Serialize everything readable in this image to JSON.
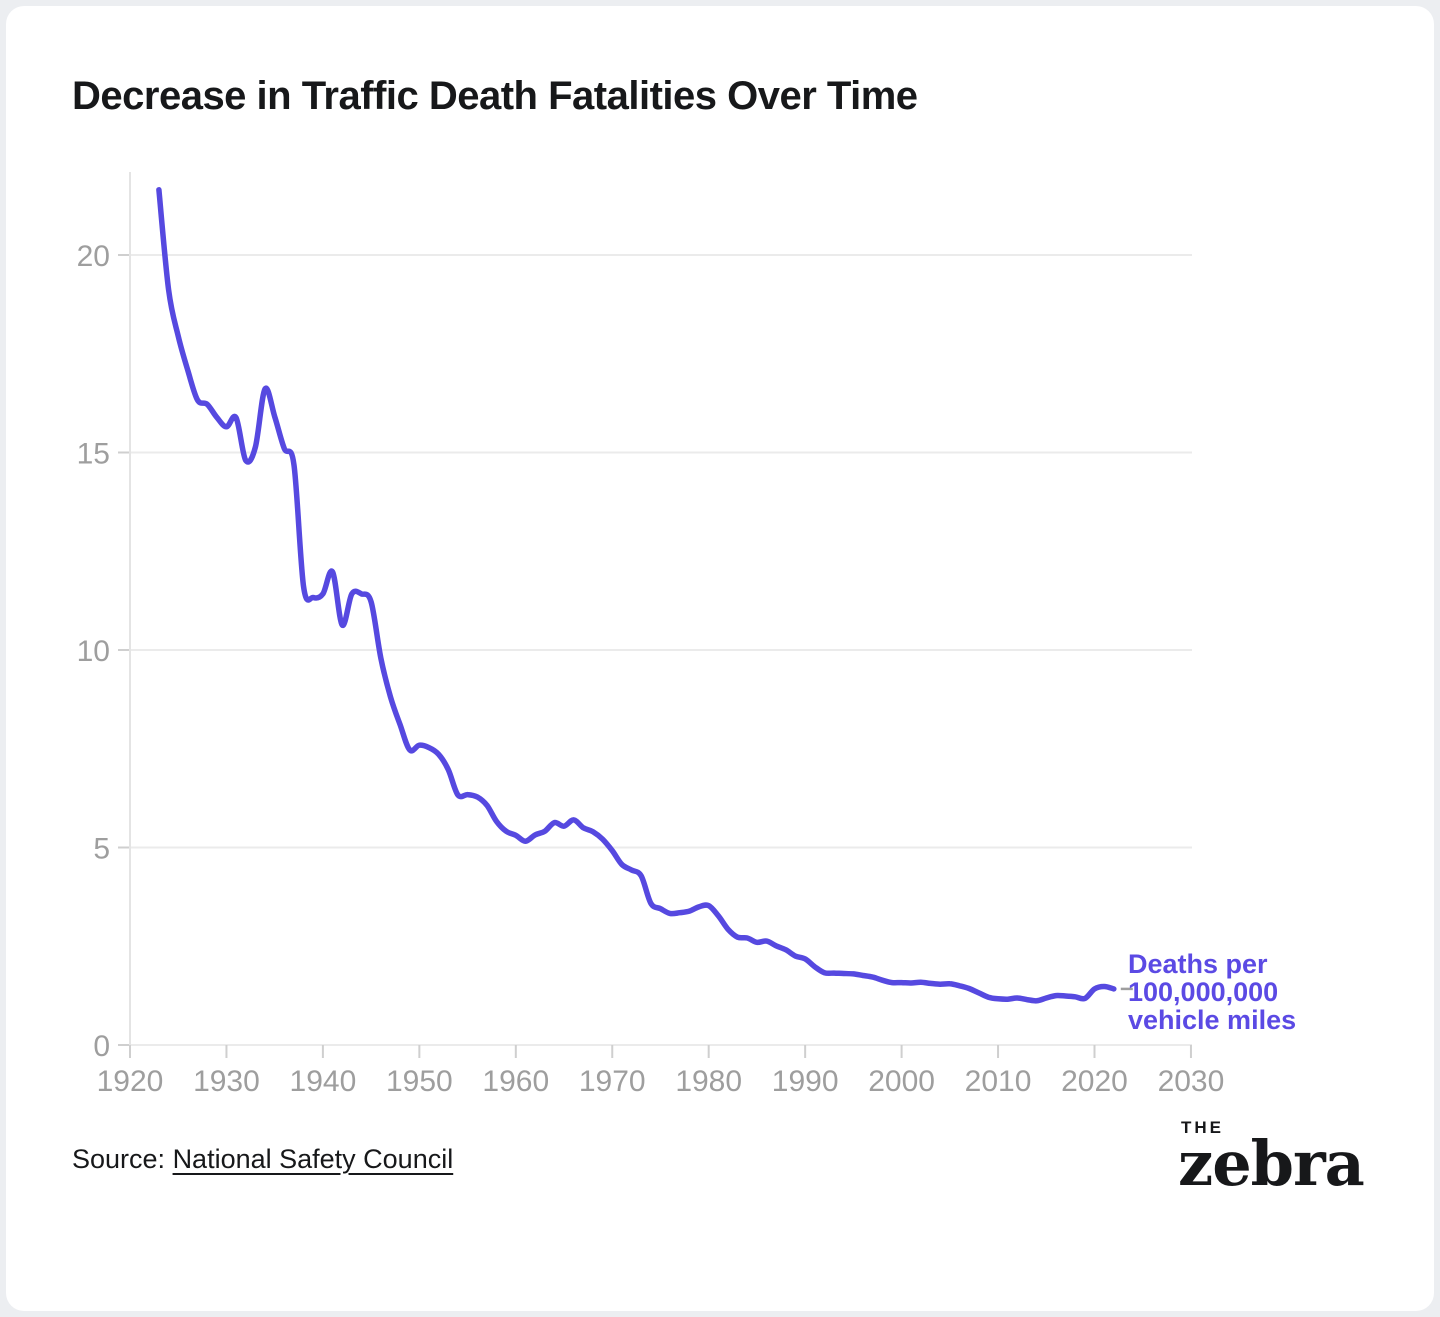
{
  "page": {
    "background_color": "#eceef1",
    "card_color": "#ffffff"
  },
  "header": {
    "title": "Decrease in Traffic Death Fatalities Over Time"
  },
  "chart_data": {
    "type": "line",
    "title": "Decrease in Traffic Death Fatalities Over Time",
    "xlabel": "",
    "ylabel": "",
    "grid": "horizontal",
    "x_ticks": [
      1920,
      1930,
      1940,
      1950,
      1960,
      1970,
      1980,
      1990,
      2000,
      2010,
      2020,
      2030
    ],
    "y_ticks": [
      0,
      5,
      10,
      15,
      20
    ],
    "xlim": [
      1920,
      2033
    ],
    "ylim": [
      0,
      22.1
    ],
    "line_color": "#5649e0",
    "grid_color": "#ebebeb",
    "axis_color": "#e4e4e4",
    "tick_color": "#cfcfcf",
    "tick_label_color": "#9e9e9e",
    "annotation": {
      "text": "Deaths per\n100,000,000\nvehicle miles",
      "color": "#5b4ae4",
      "leader_dash_color": "#9e9e9e"
    },
    "series": [
      {
        "name": "Deaths per 100,000,000 vehicle miles",
        "x": [
          1923,
          1924,
          1925,
          1926,
          1927,
          1928,
          1929,
          1930,
          1931,
          1932,
          1933,
          1934,
          1935,
          1936,
          1937,
          1938,
          1939,
          1940,
          1941,
          1942,
          1943,
          1944,
          1945,
          1946,
          1947,
          1948,
          1949,
          1950,
          1951,
          1952,
          1953,
          1954,
          1955,
          1956,
          1957,
          1958,
          1959,
          1960,
          1961,
          1962,
          1963,
          1964,
          1965,
          1966,
          1967,
          1968,
          1969,
          1970,
          1971,
          1972,
          1973,
          1974,
          1975,
          1976,
          1977,
          1978,
          1979,
          1980,
          1981,
          1982,
          1983,
          1984,
          1985,
          1986,
          1987,
          1988,
          1989,
          1990,
          1991,
          1992,
          1993,
          1994,
          1995,
          1996,
          1997,
          1998,
          1999,
          2000,
          2001,
          2002,
          2003,
          2004,
          2005,
          2006,
          2007,
          2008,
          2009,
          2010,
          2011,
          2012,
          2013,
          2014,
          2015,
          2016,
          2017,
          2018,
          2019,
          2020,
          2021,
          2022
        ],
        "values": [
          21.65,
          19.12,
          17.95,
          17.07,
          16.33,
          16.22,
          15.89,
          15.65,
          15.88,
          14.8,
          15.14,
          16.61,
          15.91,
          15.1,
          14.68,
          11.6,
          11.33,
          11.42,
          11.98,
          10.63,
          11.42,
          11.42,
          11.22,
          9.8,
          8.82,
          8.11,
          7.47,
          7.59,
          7.53,
          7.36,
          6.97,
          6.33,
          6.34,
          6.28,
          6.07,
          5.66,
          5.41,
          5.31,
          5.16,
          5.32,
          5.41,
          5.63,
          5.54,
          5.7,
          5.5,
          5.4,
          5.21,
          4.92,
          4.57,
          4.43,
          4.28,
          3.59,
          3.45,
          3.33,
          3.35,
          3.39,
          3.5,
          3.53,
          3.27,
          2.93,
          2.73,
          2.71,
          2.6,
          2.63,
          2.51,
          2.41,
          2.25,
          2.18,
          1.98,
          1.83,
          1.82,
          1.81,
          1.8,
          1.76,
          1.72,
          1.64,
          1.58,
          1.58,
          1.57,
          1.59,
          1.56,
          1.54,
          1.55,
          1.5,
          1.43,
          1.32,
          1.21,
          1.17,
          1.16,
          1.19,
          1.15,
          1.12,
          1.19,
          1.25,
          1.24,
          1.22,
          1.18,
          1.42,
          1.48,
          1.42
        ]
      }
    ]
  },
  "footer": {
    "source_prefix": "Source: ",
    "source_link": "National Safety Council"
  },
  "logo": {
    "the": "THE",
    "zebra": "zebra"
  }
}
